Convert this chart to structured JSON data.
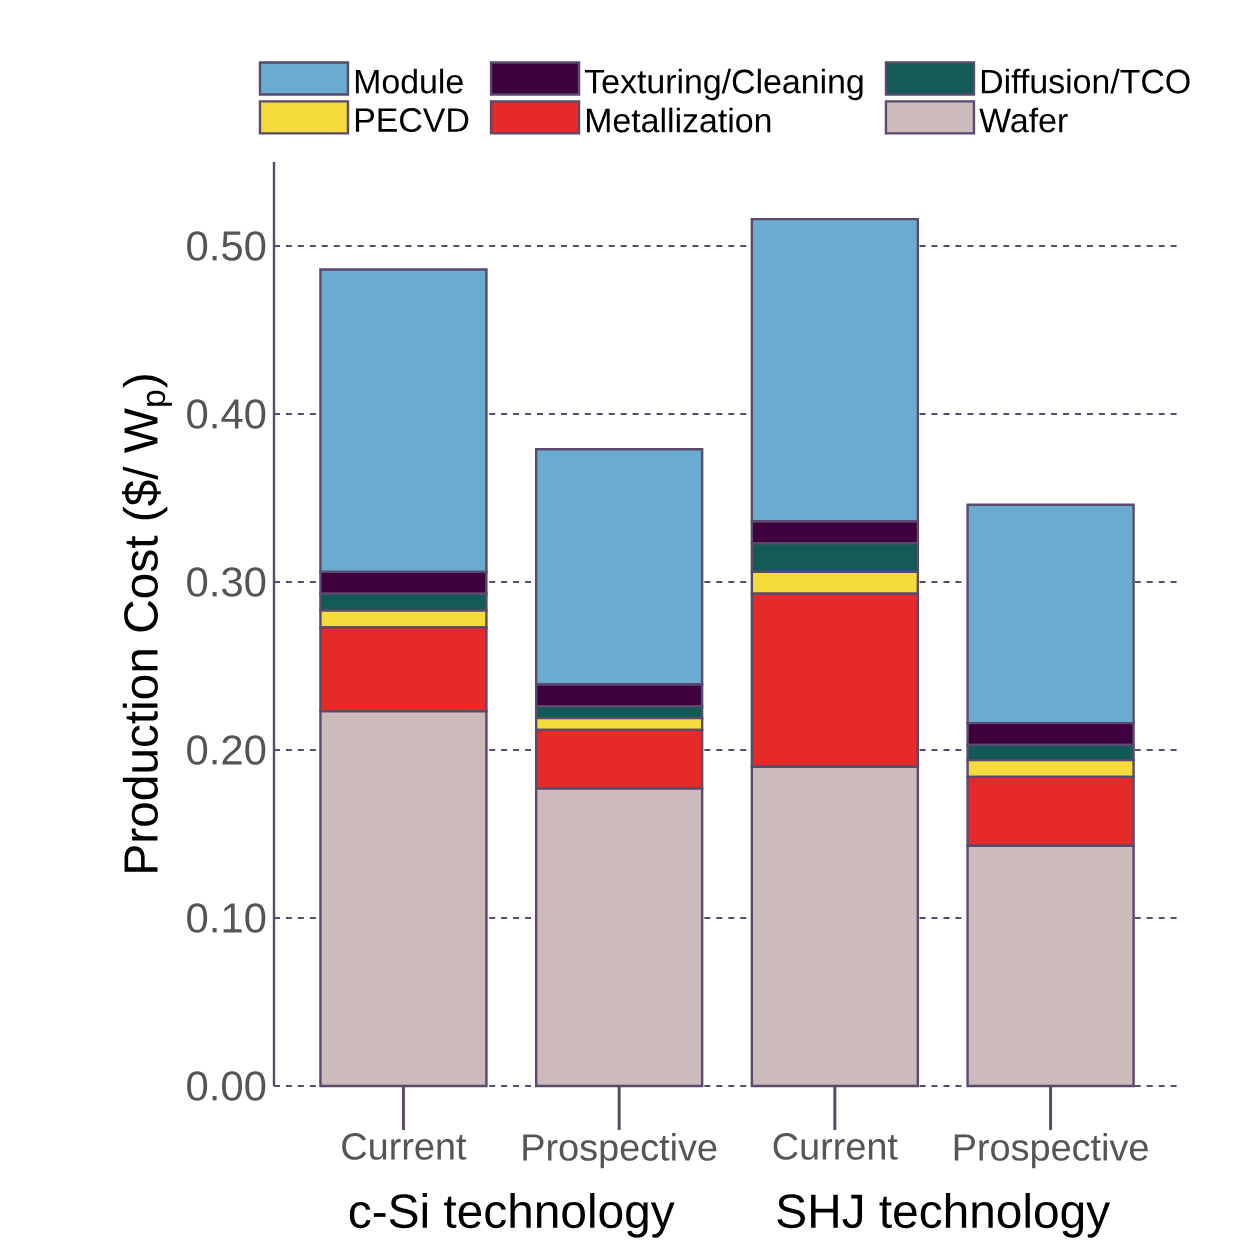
{
  "chart_data": {
    "type": "bar",
    "stacked": true,
    "ylabel": "Production Cost ($/ W$_{p}$)",
    "categories": [
      "Current",
      "Prospective",
      "Current",
      "Prospective"
    ],
    "annotations": [
      "c-Si technology",
      "SHJ technology"
    ],
    "series": [
      {
        "name": "Wafer",
        "color": "#cdbbbb",
        "values": [
          0.223,
          0.177,
          0.19,
          0.143
        ]
      },
      {
        "name": "Metallization",
        "color": "#e52a28",
        "values": [
          0.05,
          0.035,
          0.103,
          0.041
        ]
      },
      {
        "name": "PECVD",
        "color": "#f5dc3c",
        "values": [
          0.01,
          0.007,
          0.013,
          0.01
        ]
      },
      {
        "name": "Diffusion/TCO",
        "color": "#125a56",
        "values": [
          0.01,
          0.007,
          0.017,
          0.009
        ]
      },
      {
        "name": "Texturing/Cleaning",
        "color": "#3f0040",
        "values": [
          0.013,
          0.013,
          0.013,
          0.013
        ]
      },
      {
        "name": "Module",
        "color": "#6aabd0",
        "values": [
          0.18,
          0.14,
          0.18,
          0.13
        ]
      }
    ],
    "ylim": [
      0,
      0.55
    ],
    "yticks": [
      {
        "value": 0,
        "label": "0.00"
      },
      {
        "value": 0.1,
        "label": "0.10"
      },
      {
        "value": 0.2,
        "label": "0.20"
      },
      {
        "value": 0.3,
        "label": "0.30"
      },
      {
        "value": 0.4,
        "label": "0.40"
      },
      {
        "value": 0.5,
        "label": "0.50"
      }
    ],
    "grid": "y",
    "legend": "top"
  }
}
